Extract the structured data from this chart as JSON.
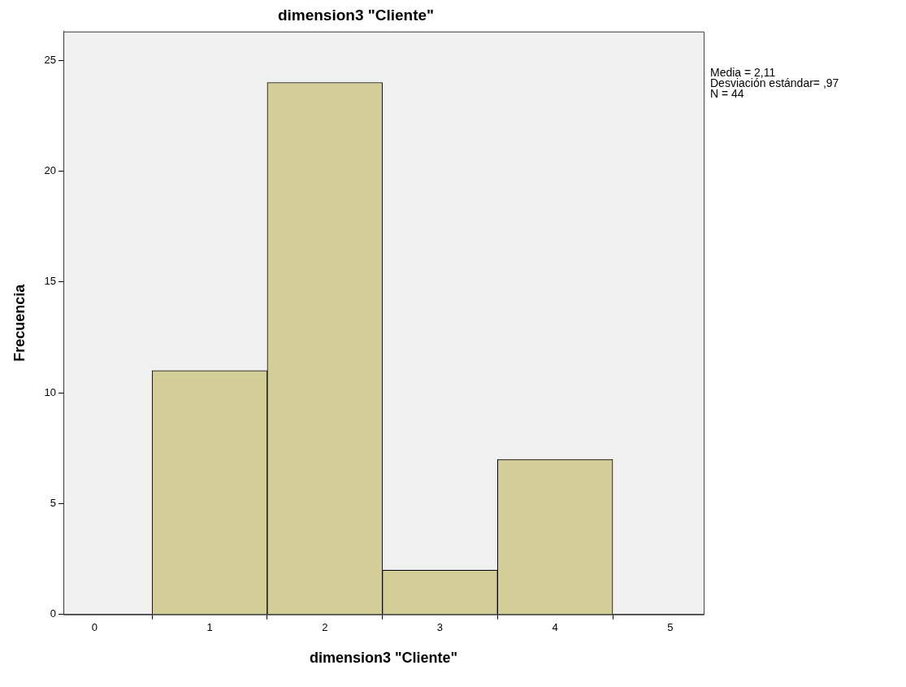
{
  "chart_data": {
    "type": "histogram",
    "title": "dimension3 \"Cliente\"",
    "xlabel": "dimension3 \"Cliente\"",
    "ylabel": "Frecuencia",
    "bins": [
      0.5,
      1.5,
      2.5,
      3.5,
      4.5
    ],
    "values": [
      11,
      24,
      2,
      7
    ],
    "color": "#d3ce97",
    "xlim": [
      -0.27,
      5.29
    ],
    "xticks": [
      0,
      1,
      2,
      3,
      4,
      5
    ],
    "ylim": [
      0,
      26.3
    ],
    "yticks": [
      0,
      5,
      10,
      15,
      20,
      25
    ],
    "grid": false,
    "legend": false,
    "annotations": [
      "Media = 2,11",
      "Desviación estándar= ,97",
      "N = 44"
    ]
  }
}
